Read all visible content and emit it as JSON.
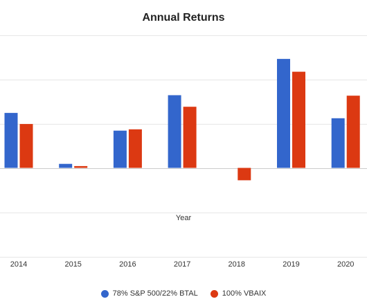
{
  "chart_data": {
    "type": "bar",
    "title": "Annual Returns",
    "xlabel": "Year",
    "ylabel": "",
    "categories": [
      "2014",
      "2015",
      "2016",
      "2017",
      "2018",
      "2019",
      "2020"
    ],
    "series": [
      {
        "name": "78% S&P 500/22% BTAL",
        "color": "#3366cc",
        "values": [
          12.4,
          0.9,
          8.4,
          16.4,
          0.0,
          24.6,
          11.2
        ]
      },
      {
        "name": "100% VBAIX",
        "color": "#dc3912",
        "values": [
          9.9,
          0.4,
          8.7,
          13.8,
          -2.8,
          21.7,
          16.3
        ]
      }
    ],
    "ylim": [
      -20,
      30
    ],
    "grid": true,
    "legend": "bottom"
  }
}
